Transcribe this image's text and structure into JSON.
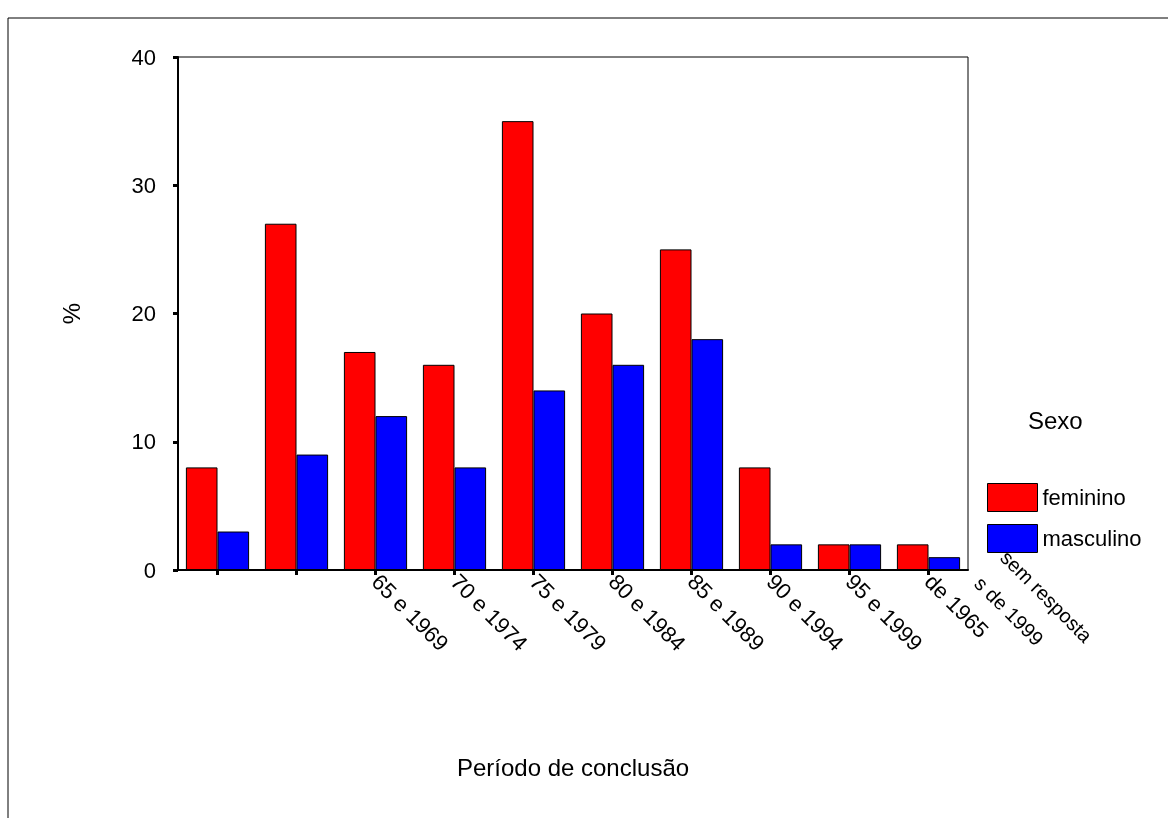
{
  "chart_data": {
    "type": "bar",
    "xlabel": "Período de conclusão",
    "ylabel": "%",
    "legend_title": "Sexo",
    "categories": [
      null,
      null,
      "65 e 1969",
      "70 e 1974",
      "75 e 1979",
      "80 e 1984",
      "85 e 1989",
      "90 e 1994",
      "95 e 1999",
      "de 1965"
    ],
    "series": [
      {
        "name": "feminino",
        "color": "#ff0000",
        "values": [
          8,
          27,
          17,
          16,
          35,
          20,
          25,
          8,
          2,
          2
        ]
      },
      {
        "name": "masculino",
        "color": "#0000ff",
        "values": [
          3,
          9,
          12,
          8,
          14,
          16,
          18,
          2,
          2,
          1
        ]
      }
    ],
    "ylim": [
      0,
      40
    ],
    "yticks": [
      0,
      10,
      20,
      30,
      40
    ],
    "grid": false,
    "legend": "right",
    "annotations": [
      "s de 1999",
      "sem resposta"
    ]
  }
}
